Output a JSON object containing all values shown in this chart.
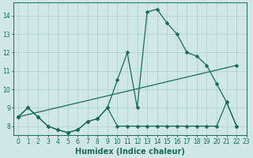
{
  "title": "",
  "xlabel": "Humidex (Indice chaleur)",
  "bg_color": "#cfe8e5",
  "grid_color": "#aacfcc",
  "line_color": "#1a6b5a",
  "xlim": [
    -0.5,
    23
  ],
  "ylim": [
    7.5,
    14.7
  ],
  "xticks": [
    0,
    1,
    2,
    3,
    4,
    5,
    6,
    7,
    8,
    9,
    10,
    11,
    12,
    13,
    14,
    15,
    16,
    17,
    18,
    19,
    20,
    21,
    22,
    23
  ],
  "yticks": [
    8,
    9,
    10,
    11,
    12,
    13,
    14
  ],
  "line1_x": [
    0,
    1,
    2,
    3,
    4,
    5,
    6,
    7,
    8,
    9,
    10,
    11,
    12,
    13,
    14,
    15,
    16,
    17,
    18,
    19,
    20,
    21,
    22
  ],
  "line1_y": [
    8.5,
    9.0,
    8.5,
    8.0,
    7.8,
    7.65,
    7.8,
    8.25,
    8.4,
    9.0,
    10.5,
    12.0,
    9.0,
    14.2,
    14.35,
    13.6,
    13.0,
    12.0,
    11.8,
    11.3,
    10.3,
    9.3,
    8.0
  ],
  "line2_x": [
    0,
    1,
    2,
    3,
    4,
    5,
    6,
    7,
    8,
    9,
    10,
    11,
    12,
    13,
    14,
    15,
    16,
    17,
    18,
    19,
    20,
    21,
    22
  ],
  "line2_y": [
    8.5,
    9.0,
    8.5,
    8.0,
    7.8,
    7.65,
    7.8,
    8.25,
    8.4,
    9.0,
    8.0,
    8.0,
    8.0,
    8.0,
    8.0,
    8.0,
    8.0,
    8.0,
    8.0,
    8.0,
    8.0,
    9.3,
    8.0
  ],
  "line3_x": [
    0,
    22
  ],
  "line3_y": [
    8.5,
    11.3
  ],
  "marker": "D",
  "marker_size": 2.5,
  "linewidth": 0.9,
  "tick_fontsize": 5.5,
  "xlabel_fontsize": 7.0
}
